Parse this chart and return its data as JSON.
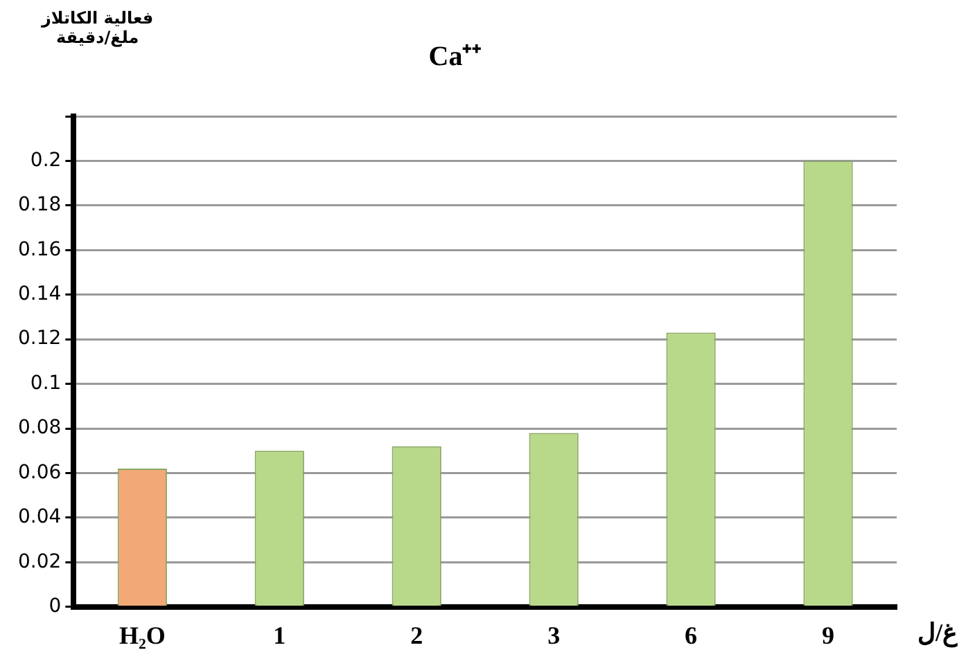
{
  "chart_data": {
    "type": "bar",
    "title": "Ca⁺⁺",
    "ylabel": "فعالية الكاتلاز\nملغ/دقيقة",
    "xlabel": "غ/ل",
    "categories": [
      "H₂O",
      "1",
      "2",
      "3",
      "6",
      "9"
    ],
    "values": [
      0.062,
      0.07,
      0.072,
      0.078,
      0.123,
      0.2
    ],
    "colors": [
      "#f2a877",
      "#b9d98a",
      "#b9d98a",
      "#b9d98a",
      "#b9d98a",
      "#b9d98a"
    ],
    "ylim": [
      0,
      0.22
    ],
    "yticks": [
      0,
      0.02,
      0.04,
      0.06,
      0.08,
      0.1,
      0.12,
      0.14,
      0.16,
      0.18,
      0.2,
      {
        "value": 0.22,
        "label": null
      }
    ],
    "grid": "y",
    "legend": false
  }
}
